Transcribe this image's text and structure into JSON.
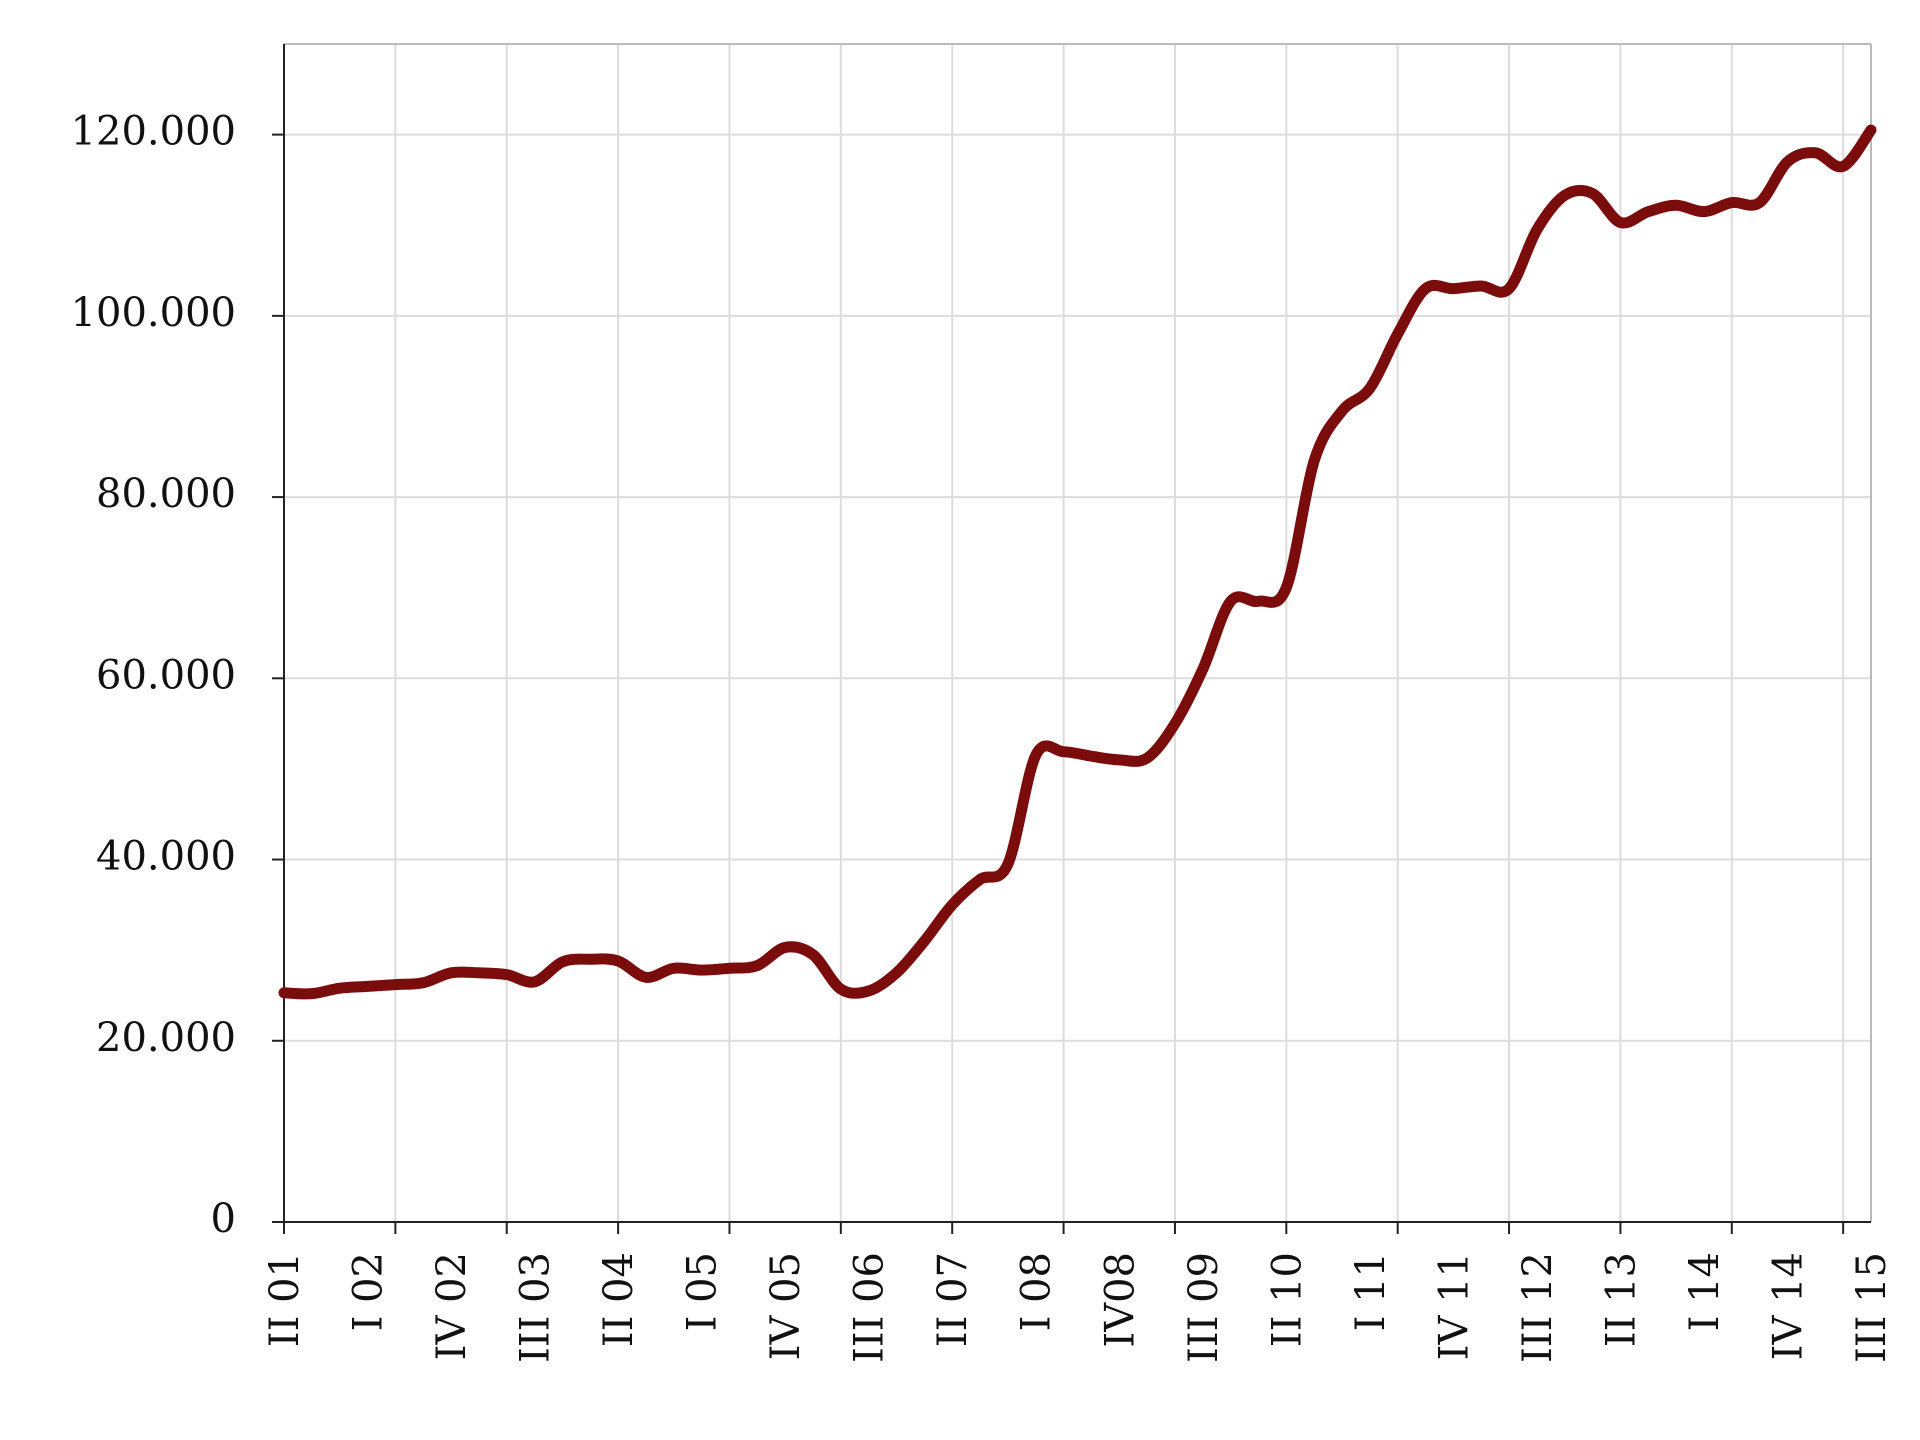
{
  "chart_data": {
    "type": "line",
    "categories": [
      "II 01",
      null,
      null,
      "I 02",
      null,
      null,
      "IV 02",
      null,
      null,
      "III 03",
      null,
      null,
      "II 04",
      null,
      null,
      "I 05",
      null,
      null,
      "IV 05",
      null,
      null,
      "III 06",
      null,
      null,
      "II 07",
      null,
      null,
      "I 08",
      null,
      null,
      "IV08",
      null,
      null,
      "III 09",
      null,
      null,
      "II 10",
      null,
      null,
      "I 11",
      null,
      null,
      "IV 11",
      null,
      null,
      "III 12",
      null,
      null,
      "II 13",
      null,
      null,
      "I 14",
      null,
      null,
      "IV 14",
      null,
      null,
      "III 15"
    ],
    "values": [
      25300,
      25200,
      25800,
      26000,
      26200,
      26400,
      27500,
      27500,
      27300,
      26500,
      28700,
      29000,
      28800,
      27000,
      28000,
      27800,
      28000,
      28300,
      30300,
      29500,
      25700,
      25500,
      27500,
      31000,
      35000,
      37800,
      39500,
      51500,
      51900,
      51400,
      51000,
      51200,
      55000,
      61000,
      68500,
      68500,
      70000,
      84000,
      89500,
      92000,
      98000,
      103000,
      103000,
      103300,
      103000,
      109500,
      113300,
      113500,
      110300,
      111500,
      112200,
      111500,
      112500,
      112500,
      117000,
      118000,
      116500,
      120500
    ],
    "color": "#7b0c0c",
    "ylim": [
      0,
      130000
    ],
    "yticks": [
      0,
      {
        "value": 20000,
        "label": "20.000"
      },
      {
        "value": 40000,
        "label": "40.000"
      },
      {
        "value": 60000,
        "label": "60.000"
      },
      {
        "value": 80000,
        "label": "80.000"
      },
      {
        "value": 100000,
        "label": "100.000"
      },
      {
        "value": 120000,
        "label": "120.000"
      }
    ],
    "grid": true
  }
}
